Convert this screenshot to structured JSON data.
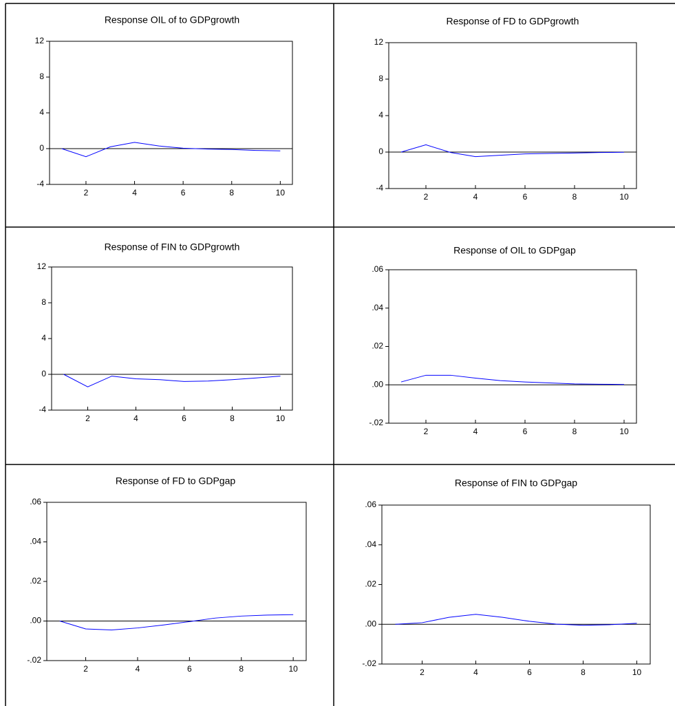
{
  "chart_data": [
    {
      "type": "line",
      "title": "Response OIL of to GDPgrowth",
      "x": [
        1,
        2,
        3,
        4,
        5,
        6,
        7,
        8,
        9,
        10
      ],
      "values": [
        0,
        -0.9,
        0.2,
        0.7,
        0.3,
        0.05,
        -0.05,
        -0.1,
        -0.2,
        -0.25
      ],
      "color": "#0000ff",
      "xlim": [
        0.5,
        10.5
      ],
      "xticks": [
        2,
        4,
        6,
        8,
        10
      ],
      "ylim": [
        -4,
        12
      ],
      "yticks": [
        -4,
        0,
        4,
        8,
        12
      ]
    },
    {
      "type": "line",
      "title": "Response of FD to GDPgrowth",
      "x": [
        1,
        2,
        3,
        4,
        5,
        6,
        7,
        8,
        9,
        10
      ],
      "values": [
        0,
        0.8,
        -0.05,
        -0.5,
        -0.35,
        -0.2,
        -0.15,
        -0.1,
        -0.05,
        -0.02
      ],
      "color": "#0000ff",
      "xlim": [
        0.5,
        10.5
      ],
      "xticks": [
        2,
        4,
        6,
        8,
        10
      ],
      "ylim": [
        -4,
        12
      ],
      "yticks": [
        -4,
        0,
        4,
        8,
        12
      ]
    },
    {
      "type": "line",
      "title": "Response of FIN to GDPgrowth",
      "x": [
        1,
        2,
        3,
        4,
        5,
        6,
        7,
        8,
        9,
        10
      ],
      "values": [
        0,
        -1.4,
        -0.2,
        -0.5,
        -0.6,
        -0.8,
        -0.75,
        -0.6,
        -0.4,
        -0.2
      ],
      "color": "#0000ff",
      "xlim": [
        0.5,
        10.5
      ],
      "xticks": [
        2,
        4,
        6,
        8,
        10
      ],
      "ylim": [
        -4,
        12
      ],
      "yticks": [
        -4,
        0,
        4,
        8,
        12
      ]
    },
    {
      "type": "line",
      "title": "Response of OIL to GDPgap",
      "x": [
        1,
        2,
        3,
        4,
        5,
        6,
        7,
        8,
        9,
        10
      ],
      "values": [
        0.0015,
        0.005,
        0.005,
        0.0035,
        0.0022,
        0.0015,
        0.001,
        0.0005,
        0.0003,
        0.0002
      ],
      "color": "#0000ff",
      "xlim": [
        0.5,
        10.5
      ],
      "xticks": [
        2,
        4,
        6,
        8,
        10
      ],
      "ylim": [
        -0.02,
        0.06
      ],
      "yticks": [
        {
          "value": -0.02,
          "label": "-.02"
        },
        {
          "value": 0,
          "label": ".00"
        },
        {
          "value": 0.02,
          "label": ".02"
        },
        {
          "value": 0.04,
          "label": ".04"
        },
        {
          "value": 0.06,
          "label": ".06"
        }
      ]
    },
    {
      "type": "line",
      "title": "Response of FD to GDPgap",
      "x": [
        1,
        2,
        3,
        4,
        5,
        6,
        7,
        8,
        9,
        10
      ],
      "values": [
        0,
        -0.004,
        -0.0045,
        -0.0035,
        -0.002,
        -0.0003,
        0.0015,
        0.0025,
        0.003,
        0.0032
      ],
      "color": "#0000ff",
      "xlim": [
        0.5,
        10.5
      ],
      "xticks": [
        2,
        4,
        6,
        8,
        10
      ],
      "ylim": [
        -0.02,
        0.06
      ],
      "yticks": [
        {
          "value": -0.02,
          "label": "-.02"
        },
        {
          "value": 0,
          "label": ".00"
        },
        {
          "value": 0.02,
          "label": ".02"
        },
        {
          "value": 0.04,
          "label": ".04"
        },
        {
          "value": 0.06,
          "label": ".06"
        }
      ]
    },
    {
      "type": "line",
      "title": "Response of FIN to GDPgap",
      "x": [
        1,
        2,
        3,
        4,
        5,
        6,
        7,
        8,
        9,
        10
      ],
      "values": [
        0,
        0.0008,
        0.0035,
        0.005,
        0.0035,
        0.0015,
        0.0001,
        -0.0005,
        -0.0002,
        0.0005
      ],
      "color": "#0000ff",
      "xlim": [
        0.5,
        10.5
      ],
      "xticks": [
        2,
        4,
        6,
        8,
        10
      ],
      "ylim": [
        -0.02,
        0.06
      ],
      "yticks": [
        {
          "value": -0.02,
          "label": "-.02"
        },
        {
          "value": 0,
          "label": ".00"
        },
        {
          "value": 0.02,
          "label": ".02"
        },
        {
          "value": 0.04,
          "label": ".04"
        },
        {
          "value": 0.06,
          "label": ".06"
        }
      ]
    }
  ]
}
